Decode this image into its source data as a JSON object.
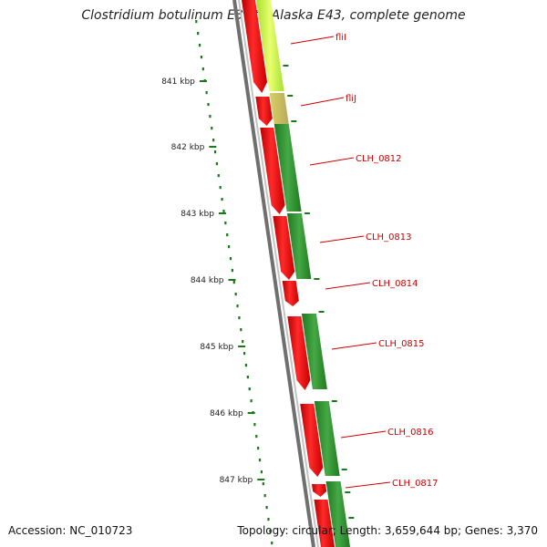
{
  "title": "Clostridium botulinum E3 str. Alaska E43, complete genome",
  "accession": "Accession: NC_010723",
  "summary": "Topology: circular; Length: 3,659,644 bp; Genes: 3,370",
  "ticks": [
    "841 kbp",
    "842 kbp",
    "843 kbp",
    "844 kbp",
    "845 kbp",
    "846 kbp",
    "847 kbp"
  ],
  "genes": [
    "fliI",
    "fliJ",
    "CLH_0812",
    "CLH_0813",
    "CLH_0814",
    "CLH_0815",
    "CLH_0816",
    "CLH_0817"
  ],
  "colors": {
    "forward_cds": "#e81212",
    "orf": "#2e8b2e",
    "orf_highlight": "#c8f040",
    "backbone": "#8a8a8a",
    "gc_skew": "#1a7a1a",
    "label": "#cc0000"
  }
}
